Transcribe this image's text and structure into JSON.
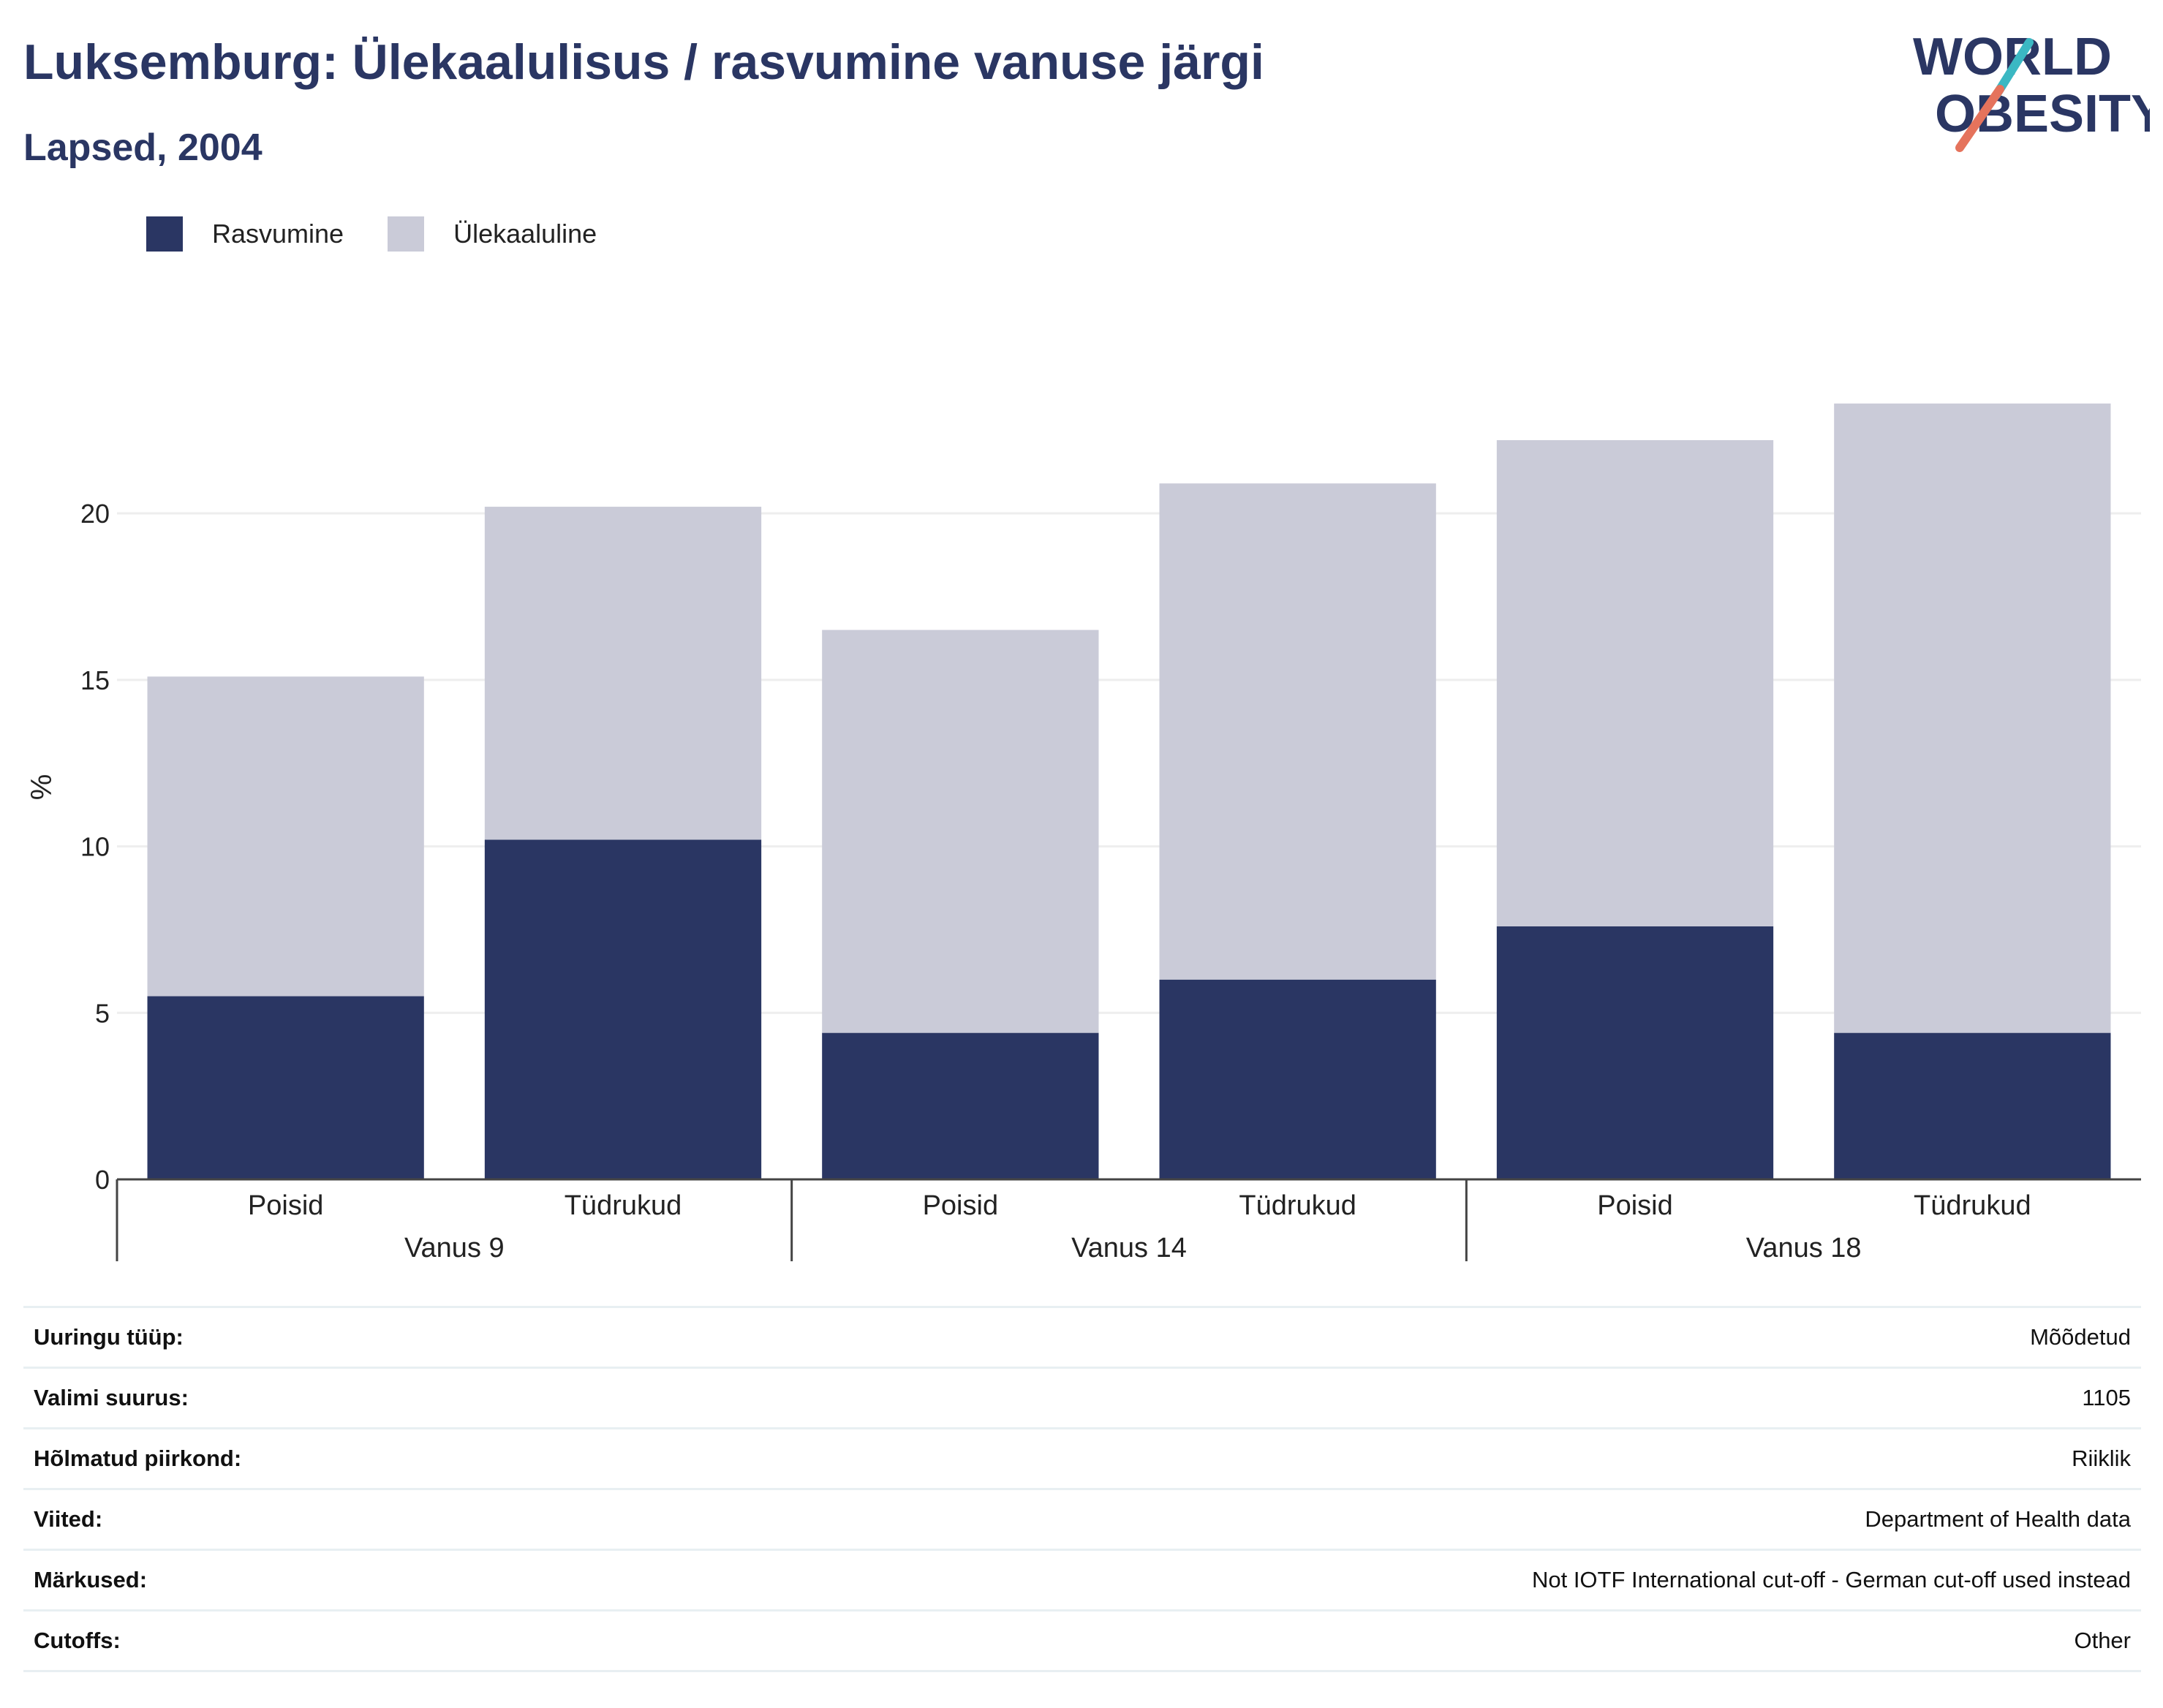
{
  "header": {
    "title": "Luksemburg: Ülekaalulisus / rasvumine vanuse järgi",
    "subtitle": "Lapsed, 2004"
  },
  "logo": {
    "line1": "WORLD",
    "line2": "OBESITY",
    "accent_teal": "#3bb8c3",
    "accent_coral": "#e5735c"
  },
  "colors": {
    "obesity": "#2a3663",
    "overweight": "#cacbd8",
    "grid": "#eeeeee",
    "axis": "#444444"
  },
  "chart_data": {
    "type": "bar",
    "stacked": true,
    "ylabel": "%",
    "ylim": [
      0,
      24
    ],
    "yticks": [
      0,
      5,
      10,
      15,
      20
    ],
    "grid": true,
    "legend_position": "top-left",
    "groups": [
      {
        "label": "Vanus 9",
        "categories": [
          "Poisid",
          "Tüdrukud"
        ]
      },
      {
        "label": "Vanus 14",
        "categories": [
          "Poisid",
          "Tüdrukud"
        ]
      },
      {
        "label": "Vanus 18",
        "categories": [
          "Poisid",
          "Tüdrukud"
        ]
      }
    ],
    "series": [
      {
        "name": "Rasvumine",
        "color": "#2a3663",
        "values": [
          5.5,
          10.2,
          4.4,
          6.0,
          7.6,
          4.4
        ]
      },
      {
        "name": "Ülekaaluline",
        "color": "#cacbd8",
        "values": [
          9.6,
          10.0,
          12.1,
          14.9,
          14.6,
          18.9
        ]
      }
    ]
  },
  "info": [
    {
      "label": "Uuringu tüüp:",
      "value": "Mõõdetud"
    },
    {
      "label": "Valimi suurus:",
      "value": "1105"
    },
    {
      "label": "Hõlmatud piirkond:",
      "value": "Riiklik"
    },
    {
      "label": "Viited:",
      "value": "Department of Health data"
    },
    {
      "label": "Märkused:",
      "value": "Not IOTF International cut-off - German cut-off used instead"
    },
    {
      "label": "Cutoffs:",
      "value": "Other"
    }
  ]
}
